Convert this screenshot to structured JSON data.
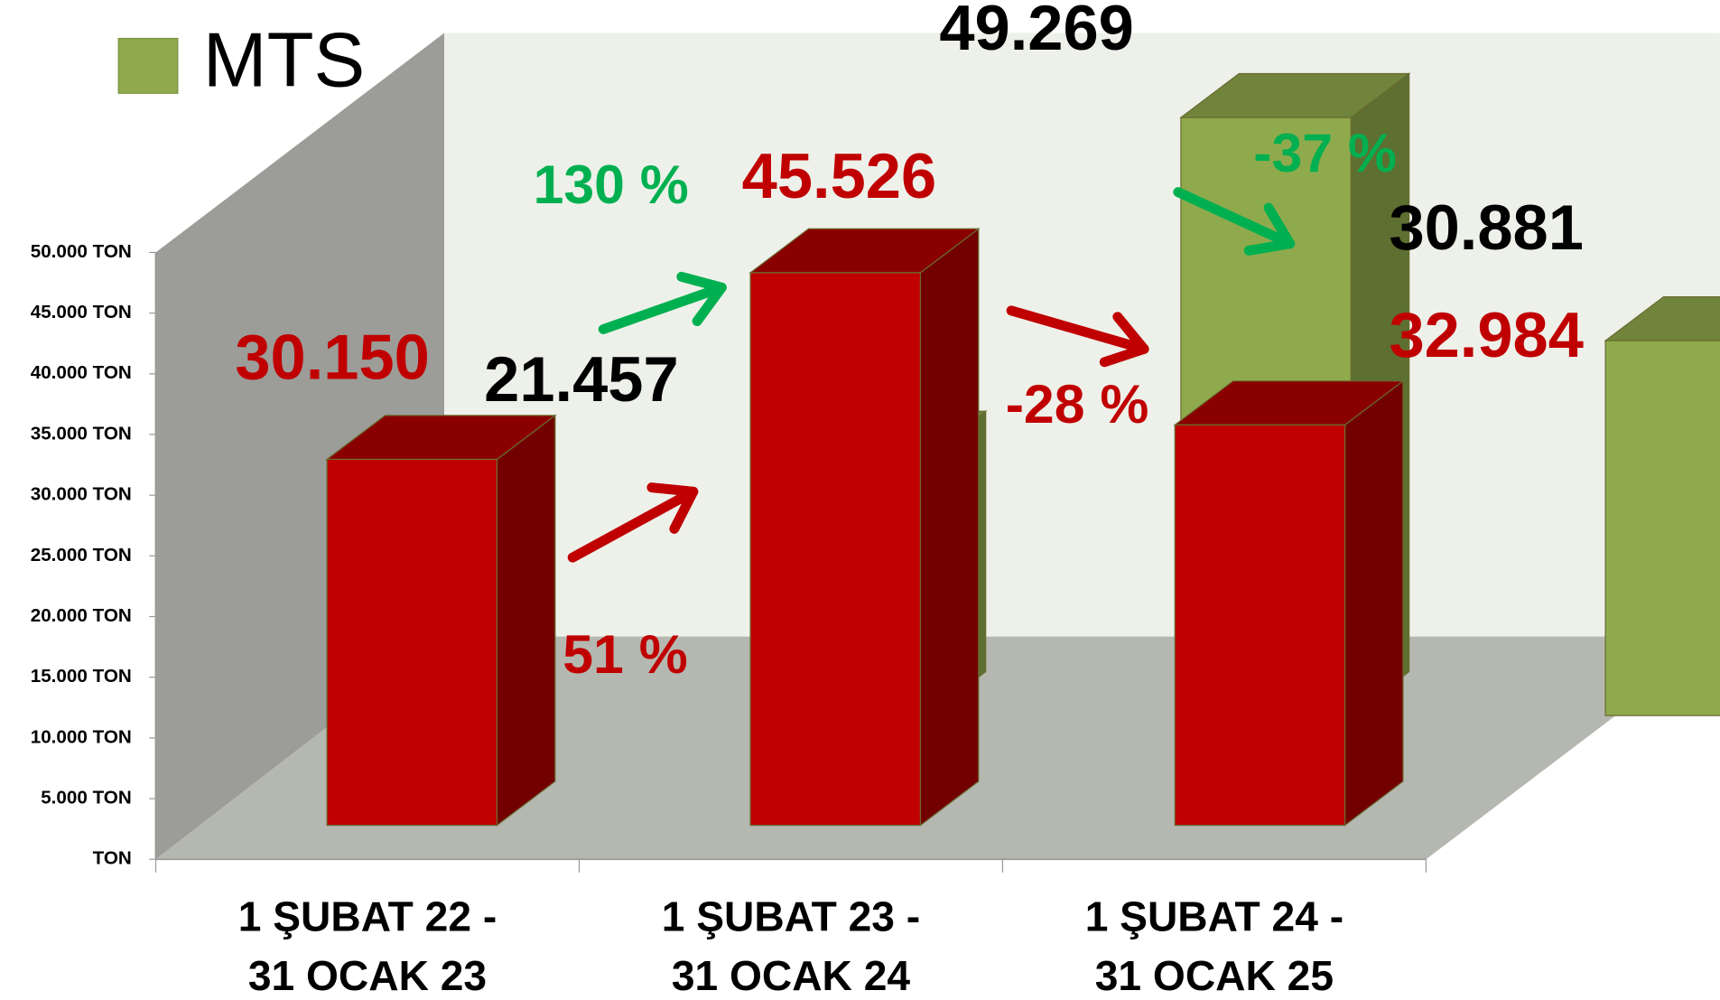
{
  "chart_data": {
    "type": "bar3d",
    "legend": {
      "name": "MTS",
      "color": "#8faa4c"
    },
    "categories": [
      [
        "1 ŞUBAT 22 -",
        "31 OCAK 23"
      ],
      [
        "1 ŞUBAT 23 -",
        "31 OCAK 24"
      ],
      [
        "1 ŞUBAT 24 -",
        "31 OCAK 25"
      ]
    ],
    "series": [
      {
        "color": "#c00000",
        "values": [
          30150,
          45526,
          32984
        ],
        "value_labels": [
          "30.150",
          "45.526",
          "32.984"
        ]
      },
      {
        "name": "MTS",
        "color": "#8faa4c",
        "values": [
          21457,
          49269,
          30881
        ],
        "value_labels": [
          "21.457",
          "49.269",
          "30.881"
        ]
      }
    ],
    "ylim": [
      0,
      50000
    ],
    "yticks": [
      {
        "value": 0,
        "label": "TON"
      },
      {
        "value": 5000,
        "label": "5.000 TON"
      },
      {
        "value": 10000,
        "label": "10.000 TON"
      },
      {
        "value": 15000,
        "label": "15.000 TON"
      },
      {
        "value": 20000,
        "label": "20.000 TON"
      },
      {
        "value": 25000,
        "label": "25.000 TON"
      },
      {
        "value": 30000,
        "label": "30.000 TON"
      },
      {
        "value": 35000,
        "label": "35.000 TON"
      },
      {
        "value": 40000,
        "label": "40.000 TON"
      },
      {
        "value": 45000,
        "label": "45.000 TON"
      },
      {
        "value": 50000,
        "label": "50.000 TON"
      }
    ],
    "annotations": [
      {
        "text": "51 %",
        "color": "#c00000"
      },
      {
        "text": "130 %",
        "color": "#00b050"
      },
      {
        "text": "-28 %",
        "color": "#c00000"
      },
      {
        "text": "-37 %",
        "color": "#00b050"
      }
    ]
  }
}
